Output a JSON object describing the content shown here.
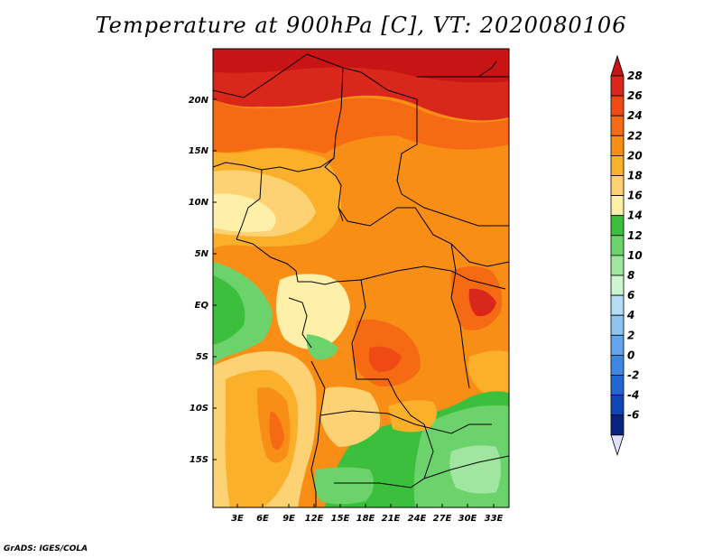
{
  "title": "Temperature at 900hPa [C], VT: 2020080106",
  "credit": "GrADS: IGES/COLA",
  "map": {
    "lat_labels": [
      "20N",
      "15N",
      "10N",
      "5N",
      "EQ",
      "5S",
      "10S",
      "15S"
    ],
    "lon_labels": [
      "3E",
      "6E",
      "9E",
      "12E",
      "15E",
      "18E",
      "21E",
      "24E",
      "27E",
      "30E",
      "33E"
    ]
  },
  "colorbar": {
    "labels": [
      "28",
      "26",
      "24",
      "22",
      "20",
      "18",
      "16",
      "14",
      "12",
      "10",
      "8",
      "6",
      "4",
      "2",
      "0",
      "-2",
      "-4",
      "-6"
    ],
    "colors": [
      "#d9271c",
      "#ef4a14",
      "#f56a12",
      "#f88e15",
      "#fbb02b",
      "#fdd275",
      "#fef0a8",
      "#3cbf3c",
      "#6cd36c",
      "#a0e6a0",
      "#cdf4d0",
      "#b5ddf5",
      "#8ec4f0",
      "#63a5ea",
      "#3f87e0",
      "#2166d2",
      "#0f45b4",
      "#0a2280"
    ],
    "under_color": "#e0e0f8",
    "over_color": "#c81414"
  }
}
